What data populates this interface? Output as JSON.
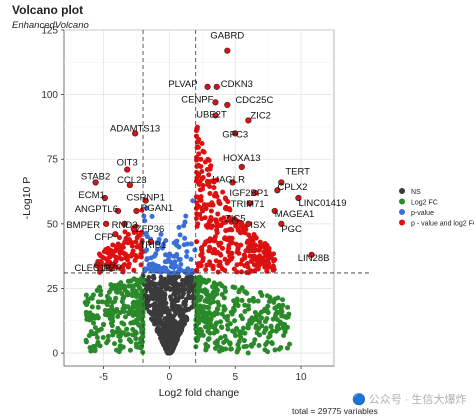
{
  "chart_data": {
    "type": "scatter",
    "title": "Volcano plot",
    "subtitle": "EnhancedVolcano",
    "xlabel": "Log2 fold change",
    "ylabel": "-Log10 P",
    "xlim": [
      -8,
      12.5
    ],
    "ylim": [
      -5,
      125
    ],
    "x_ticks": [
      -5,
      0,
      5,
      10
    ],
    "y_ticks": [
      0,
      25,
      50,
      75,
      100,
      125
    ],
    "cutoffs": {
      "fc": [
        -2,
        2
      ],
      "p": 31
    },
    "grid": true,
    "legend_position": "right",
    "caption": "total = 29775 variables",
    "colors": {
      "ns": "#3a3a3a",
      "log2fc": "#2a8a2a",
      "pvalue": "#3a6fd8",
      "both": "#dd1111"
    },
    "legend": [
      {
        "key": "ns",
        "label": "NS"
      },
      {
        "key": "log2fc",
        "label": "Log2 FC"
      },
      {
        "key": "pvalue",
        "label": "p-value"
      },
      {
        "key": "both",
        "label": "p - value and log2 FC"
      }
    ],
    "labeled_genes": [
      {
        "label": "GABRD",
        "x": 4.4,
        "y": 117
      },
      {
        "label": "PLVAP",
        "x": 2.9,
        "y": 103
      },
      {
        "label": "CDKN3",
        "x": 3.6,
        "y": 103
      },
      {
        "label": "CENPF",
        "x": 3.5,
        "y": 97
      },
      {
        "label": "CDC25C",
        "x": 4.4,
        "y": 96
      },
      {
        "label": "UBE2T",
        "x": 3.5,
        "y": 92
      },
      {
        "label": "ZIC2",
        "x": 6.0,
        "y": 90
      },
      {
        "label": "GPC3",
        "x": 5.0,
        "y": 85
      },
      {
        "label": "ADAMTS13",
        "x": -2.6,
        "y": 85
      },
      {
        "label": "HOXA13",
        "x": 5.5,
        "y": 72
      },
      {
        "label": "TERT",
        "x": 8.5,
        "y": 66
      },
      {
        "label": "HAGLR",
        "x": 4.8,
        "y": 66
      },
      {
        "label": "OIT3",
        "x": -3.2,
        "y": 71
      },
      {
        "label": "CPLX2",
        "x": 8.2,
        "y": 63
      },
      {
        "label": "IGF2BP1",
        "x": 6.5,
        "y": 62
      },
      {
        "label": "LINC01419",
        "x": 9.8,
        "y": 60
      },
      {
        "label": "STAB2",
        "x": -5.6,
        "y": 66
      },
      {
        "label": "CCL23",
        "x": -3.0,
        "y": 65
      },
      {
        "label": "TRIM71",
        "x": 6.1,
        "y": 58
      },
      {
        "label": "MAGEA1",
        "x": 8.0,
        "y": 55
      },
      {
        "label": "ECM1",
        "x": -4.9,
        "y": 60
      },
      {
        "label": "CSRNP1",
        "x": -1.8,
        "y": 59
      },
      {
        "label": "ANGPTL6",
        "x": -3.9,
        "y": 55
      },
      {
        "label": "RGAN1",
        "x": -2.5,
        "y": 55
      },
      {
        "label": "ZIC5",
        "x": 5.0,
        "y": 51
      },
      {
        "label": "ISX",
        "x": 6.0,
        "y": 50
      },
      {
        "label": "PGC",
        "x": 8.5,
        "y": 50
      },
      {
        "label": "BMPER",
        "x": -4.8,
        "y": 50
      },
      {
        "label": "RND3",
        "x": -3.4,
        "y": 50
      },
      {
        "label": "ZFP36",
        "x": -2.7,
        "y": 48
      },
      {
        "label": "CFP",
        "x": -4.1,
        "y": 46
      },
      {
        "label": "TRIB1",
        "x": -1.4,
        "y": 43
      },
      {
        "label": "LIN28B",
        "x": 10.8,
        "y": 38
      },
      {
        "label": "CLEC1B",
        "x": -5.5,
        "y": 34
      },
      {
        "label": "PZP",
        "x": -4.3,
        "y": 34
      }
    ]
  }
}
